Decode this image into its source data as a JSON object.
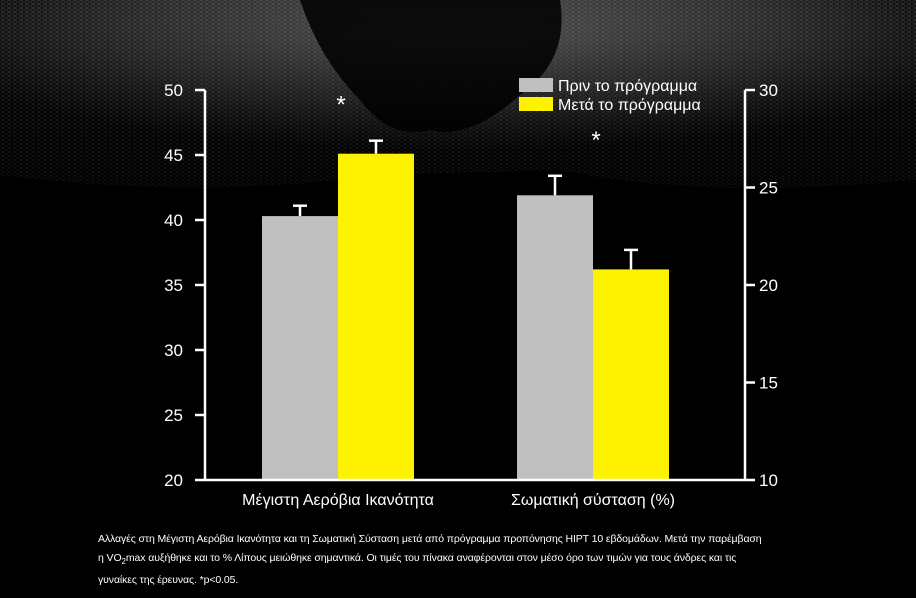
{
  "colors": {
    "background": "#000000",
    "before": "#c0c0c0",
    "after": "#fff200",
    "axis": "#ffffff"
  },
  "chart_data": {
    "type": "bar",
    "categories": [
      "Μέγιστη Αερόβια Ικανότητα",
      "Σωματική σύσταση  (%)"
    ],
    "series": [
      {
        "name": "Πριν το πρόγραμμα",
        "color": "#c0c0c0",
        "values": [
          40.3,
          24.6
        ],
        "errors": [
          0.8,
          1.0
        ]
      },
      {
        "name": "Μετά το πρόγραμμα",
        "color": "#fff200",
        "values": [
          45.1,
          20.8
        ],
        "errors": [
          1.0,
          1.0
        ]
      }
    ],
    "axes": [
      {
        "side": "left",
        "range": [
          20,
          50
        ],
        "ticks": [
          "20",
          "25",
          "30",
          "35",
          "40",
          "45",
          "50"
        ],
        "applies_to_category": 0
      },
      {
        "side": "right",
        "range": [
          10,
          30
        ],
        "ticks": [
          "10",
          "15",
          "20",
          "25",
          "30"
        ],
        "applies_to_category": 1
      }
    ],
    "significance_marker": "*",
    "significant_categories": [
      0,
      1
    ],
    "legend_placement": "top-right",
    "grid": false
  },
  "caption": {
    "line1": "Αλλαγές στη Μέγιστη Αερόβια Ικανότητα και τη Σωματική Σύσταση μετά από πρόγραμμα προπόνησης HIPT 10 εβδομάδων. Μετά την παρέμβαση",
    "line2_pre": "η VO",
    "line2_sub": "2",
    "line2_post": "max αυξήθηκε και το % Λίπους μειώθηκε σημαντικά. Οι τιμές του πίνακα αναφέρονται στον μέσο όρο των τιμών για τους άνδρες και τις",
    "line3": "γυναίκες της έρευνας. *p<0.05."
  }
}
